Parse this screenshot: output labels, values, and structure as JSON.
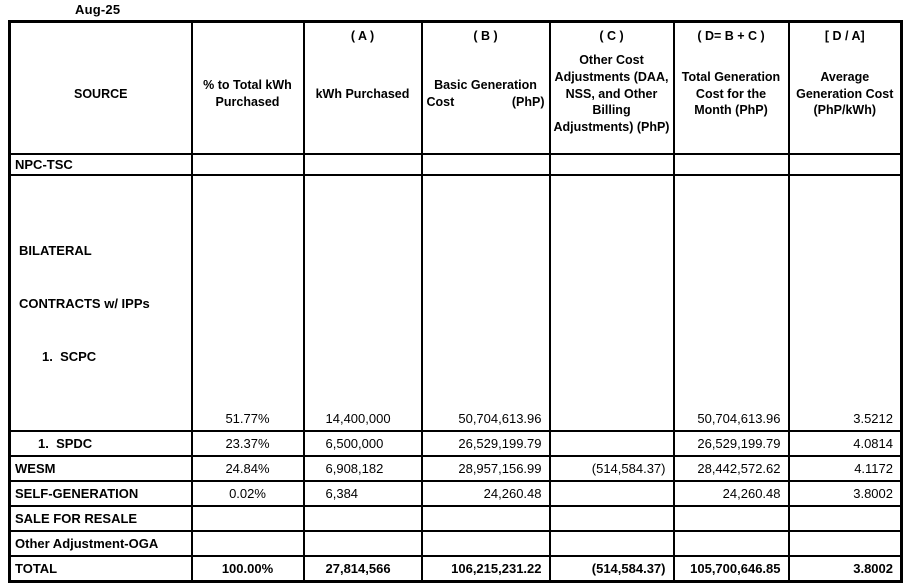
{
  "title": "Aug-25",
  "table": {
    "columns": [
      {
        "code": "",
        "label": "SOURCE"
      },
      {
        "code": "",
        "label": "% to Total kWh Purchased"
      },
      {
        "code": "( A )",
        "label": "kWh Purchased"
      },
      {
        "code": "( B )",
        "label_line1": "Basic Generation",
        "label_left": "Cost",
        "label_right": "(PhP)"
      },
      {
        "code": "( C )",
        "label": "Other Cost Adjustments (DAA, NSS, and Other Billing Adjustments) (PhP)"
      },
      {
        "code": "( D= B + C )",
        "label": "Total Generation Cost for the Month (PhP)"
      },
      {
        "code": "[ D / A]",
        "label": "Average Generation Cost (PhP/kWh)"
      }
    ],
    "rows": [
      {
        "source": "NPC-TSC",
        "pct": "",
        "kwh": "",
        "basic": "",
        "adjustments": "",
        "total": "",
        "avg": ""
      },
      {
        "source_line1": "BILATERAL",
        "source_line2": "CONTRACTS w/ IPPs",
        "source_line3": "1.  SCPC",
        "pct": "51.77%",
        "kwh": "14,400,000",
        "basic": "50,704,613.96",
        "adjustments": "",
        "total": "50,704,613.96",
        "avg": "3.5212"
      },
      {
        "source": "1.  SPDC",
        "pct": "23.37%",
        "kwh": "6,500,000",
        "basic": "26,529,199.79",
        "adjustments": "",
        "total": "26,529,199.79",
        "avg": "4.0814"
      },
      {
        "source": "WESM",
        "pct": "24.84%",
        "kwh": "6,908,182",
        "basic": "28,957,156.99",
        "adjustments": "(514,584.37)",
        "total": "28,442,572.62",
        "avg": "4.1172"
      },
      {
        "source": "SELF-GENERATION",
        "pct": "0.02%",
        "kwh": "6,384",
        "basic": "24,260.48",
        "adjustments": "",
        "total": "24,260.48",
        "avg": "3.8002"
      },
      {
        "source": "SALE FOR RESALE",
        "pct": "",
        "kwh": "",
        "basic": "",
        "adjustments": "",
        "total": "",
        "avg": ""
      },
      {
        "source": "Other Adjustment-OGA",
        "pct": "",
        "kwh": "",
        "basic": "",
        "adjustments": "",
        "total": "",
        "avg": ""
      },
      {
        "source": "TOTAL",
        "pct": "100.00%",
        "kwh": "27,814,566",
        "basic": "106,215,231.22",
        "adjustments": "(514,584.37)",
        "total": "105,700,646.85",
        "avg": "3.8002"
      }
    ]
  }
}
